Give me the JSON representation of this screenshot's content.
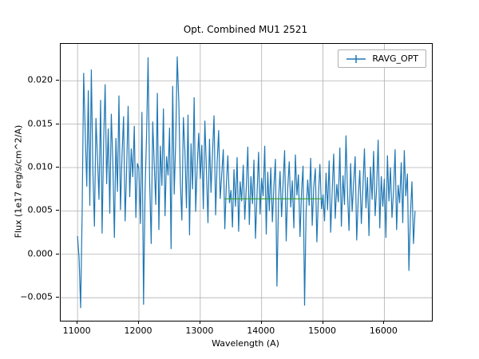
{
  "chart_data": {
    "type": "line",
    "title": "Opt. Combined MU1 2521",
    "xlabel": "Wavelength (A)",
    "ylabel": "Flux (1e17 erg/s/cm^2/A)",
    "xlim": [
      10725,
      16775
    ],
    "ylim": [
      -0.00765,
      0.02425
    ],
    "x_ticks": [
      11000,
      12000,
      13000,
      14000,
      15000,
      16000
    ],
    "x_tick_labels": [
      "11000",
      "12000",
      "13000",
      "14000",
      "15000",
      "16000"
    ],
    "y_ticks": [
      -0.005,
      0.0,
      0.005,
      0.01,
      0.015,
      0.02
    ],
    "y_tick_labels": [
      "−0.005",
      "0.000",
      "0.005",
      "0.010",
      "0.015",
      "0.020"
    ],
    "grid": true,
    "grid_color": "#b0b0b0",
    "legend": {
      "position": "upper right",
      "entries": [
        {
          "label": "RAVG_OPT",
          "color": "#1f77b4",
          "marker": "errorbar"
        }
      ]
    },
    "series": [
      {
        "name": "RAVG_OPT",
        "color": "#1f77b4",
        "x_start": 11000,
        "x_step": 25,
        "y_scale": 0.001,
        "y": [
          2.1,
          -0.5,
          -6.2,
          4.8,
          20.9,
          14.2,
          7.8,
          18.9,
          5.6,
          21.3,
          9.4,
          3.2,
          15.7,
          11.1,
          6.3,
          17.8,
          2.4,
          12.9,
          19.6,
          8.1,
          14.5,
          4.7,
          16.2,
          10.8,
          1.9,
          13.4,
          7.2,
          18.3,
          5.1,
          11.6,
          15.9,
          3.8,
          9.7,
          17.1,
          6.6,
          12.2,
          8.9,
          14.8,
          4.2,
          10.5,
          9.8,
          3.5,
          16.4,
          -5.8,
          7.3,
          13.8,
          22.7,
          8.6,
          1.2,
          15.3,
          10.4,
          5.7,
          18.6,
          2.8,
          12.5,
          7.9,
          16.8,
          4.4,
          11.3,
          9.1,
          14.6,
          0.6,
          19.4,
          6.9,
          13.1,
          22.8,
          17.5,
          8.3,
          3.9,
          15.8,
          11.9,
          5.3,
          16.1,
          2.2,
          12.8,
          7.5,
          18.1,
          4.9,
          10.1,
          14.0,
          8.7,
          12.6,
          5.2,
          15.4,
          9.9,
          3.6,
          13.3,
          7.1,
          11.7,
          16.0,
          4.5,
          10.6,
          14.3,
          6.4,
          9.3,
          12.1,
          2.9,
          8.0,
          11.4,
          5.9,
          7.4,
          3.1,
          9.8,
          5.5,
          11.2,
          2.6,
          8.4,
          6.1,
          10.3,
          4.0,
          7.7,
          12.4,
          3.4,
          9.0,
          5.8,
          10.9,
          1.8,
          7.0,
          11.8,
          4.6,
          8.8,
          6.7,
          12.5,
          2.3,
          9.5,
          5.0,
          10.0,
          3.7,
          7.9,
          11.0,
          -3.7,
          6.2,
          9.6,
          4.3,
          8.2,
          12.0,
          1.5,
          7.6,
          10.7,
          5.4,
          8.5,
          3.0,
          11.5,
          6.8,
          9.2,
          2.0,
          7.2,
          10.2,
          -5.9,
          4.8,
          8.6,
          5.6,
          11.1,
          3.3,
          7.8,
          9.9,
          1.4,
          6.5,
          10.4,
          5.2,
          6.9,
          3.8,
          9.4,
          5.1,
          10.8,
          2.5,
          7.3,
          11.6,
          4.1,
          8.1,
          6.0,
          12.3,
          3.2,
          9.1,
          5.7,
          13.7,
          7.1,
          2.7,
          10.5,
          4.9,
          8.3,
          11.3,
          1.6,
          6.6,
          9.7,
          3.5,
          7.5,
          12.2,
          5.3,
          8.9,
          2.1,
          10.1,
          6.3,
          11.9,
          4.4,
          7.7,
          13.2,
          3.0,
          9.0,
          5.5,
          8.7,
          1.9,
          11.4,
          6.1,
          10.0,
          4.2,
          7.4,
          12.1,
          2.8,
          8.0,
          5.9,
          10.6,
          3.6,
          12.0,
          6.7,
          9.3,
          -1.9,
          4.5,
          8.4,
          1.2,
          5.0
        ]
      },
      {
        "name": "baseline",
        "color": "#2ca02c",
        "x": [
          13400,
          15000
        ],
        "y": [
          0.0064,
          0.0064
        ],
        "y_scale": 1
      }
    ]
  }
}
